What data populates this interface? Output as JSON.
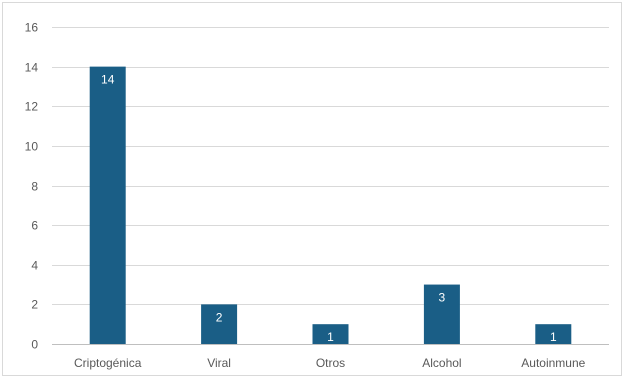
{
  "chart_data": {
    "type": "bar",
    "categories": [
      "Criptogénica",
      "Viral",
      "Otros",
      "Alcohol",
      "Autoinmune"
    ],
    "values": [
      14,
      2,
      1,
      3,
      1
    ],
    "data_labels": [
      "14",
      "2",
      "1",
      "3",
      "1"
    ],
    "title": "",
    "xlabel": "",
    "ylabel": "",
    "ylim": [
      0,
      16
    ],
    "yticks": [
      0,
      2,
      4,
      6,
      8,
      10,
      12,
      14,
      16
    ],
    "ytick_labels": [
      "0",
      "2",
      "4",
      "6",
      "8",
      "10",
      "12",
      "14",
      "16"
    ],
    "grid": true,
    "legend": "none",
    "colors": {
      "bar": "#1a5e86",
      "grid": "#d9d9d9",
      "axis": "#bfbfbf"
    }
  }
}
